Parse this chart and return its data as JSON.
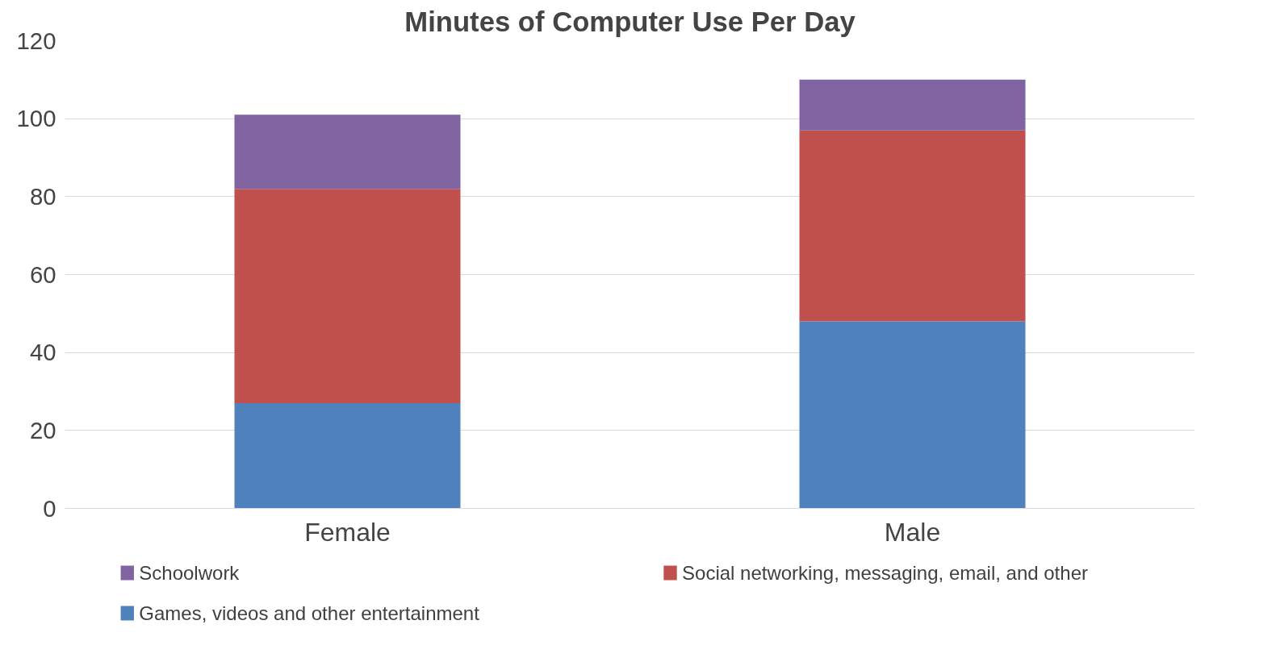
{
  "chart_data": {
    "type": "bar",
    "title": "Minutes of Computer Use Per Day",
    "categories": [
      "Female",
      "Male"
    ],
    "stacked": true,
    "series": [
      {
        "name": "Games, videos and other entertainment",
        "color": "#4f81bd",
        "values": [
          27,
          48
        ]
      },
      {
        "name": "Social networking, messaging, email, and other",
        "color": "#c0504d",
        "values": [
          55,
          49
        ]
      },
      {
        "name": "Schoolwork",
        "color": "#8064a2",
        "values": [
          19,
          13
        ]
      }
    ],
    "ylim": [
      0,
      120
    ],
    "yticks": [
      0,
      20,
      40,
      60,
      80,
      100,
      120
    ],
    "grid": "y",
    "legend": "bottom"
  }
}
